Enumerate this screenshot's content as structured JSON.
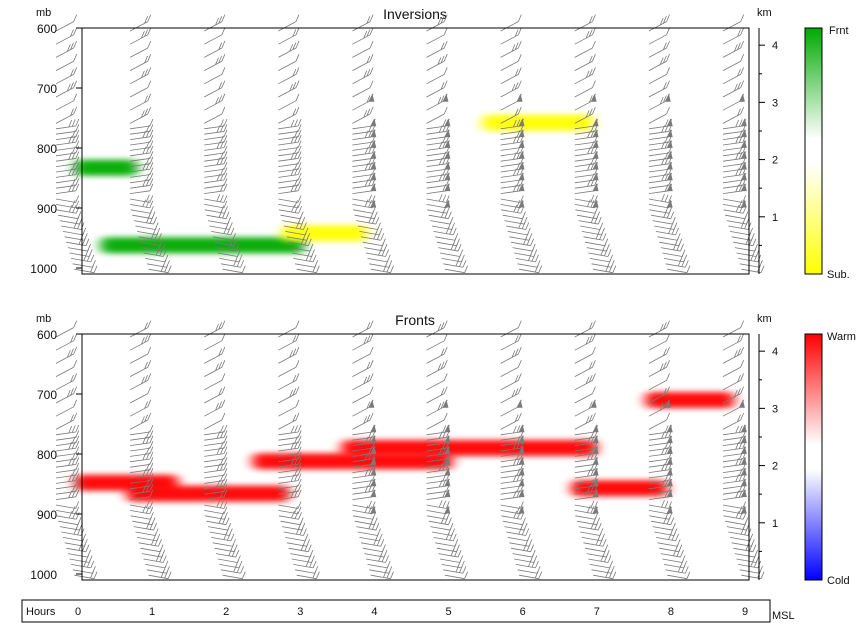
{
  "panels": [
    {
      "title": "Inversions",
      "left_unit": "mb",
      "right_unit": "km",
      "colorbar": {
        "top_label": "Frnt",
        "bottom_label": "Sub.",
        "top_color": "#00aa00",
        "bottom_color": "#ffff00"
      }
    },
    {
      "title": "Fronts",
      "left_unit": "mb",
      "right_unit": "km",
      "colorbar": {
        "top_label": "Warm",
        "bottom_label": "Cold",
        "top_color": "#ff0000",
        "bottom_color": "#0000ff"
      }
    }
  ],
  "x_axis": {
    "label": "Hours",
    "right_label": "MSL"
  },
  "chart_data": [
    {
      "type": "heatmap",
      "title": "Inversions",
      "x": [
        0,
        1,
        2,
        3,
        4,
        5,
        6,
        7,
        8,
        9
      ],
      "xlabel": "Hours",
      "xlim": [
        0,
        9
      ],
      "ylim_pressure_mb": [
        1010,
        600
      ],
      "yticks_pressure_mb": [
        "600",
        "700",
        "800",
        "900",
        "1000"
      ],
      "ylim_height_km": [
        0,
        4.3
      ],
      "yticks_height_km": [
        "1",
        "2",
        "3",
        "4"
      ],
      "colorbar_range": [
        "Sub.",
        "Frnt"
      ],
      "wind_barbs": true,
      "features": [
        {
          "kind": "Frnt",
          "x_start": -0.1,
          "x_end": 0.75,
          "pressure_mb": 833,
          "color": "#00aa00"
        },
        {
          "kind": "Frnt",
          "x_start": 0.25,
          "x_end": 3.0,
          "pressure_mb": 962,
          "color": "#00aa00"
        },
        {
          "kind": "Sub.",
          "x_start": 2.7,
          "x_end": 3.85,
          "pressure_mb": 942,
          "color": "#ffff00"
        },
        {
          "kind": "Sub.",
          "x_start": 5.4,
          "x_end": 6.9,
          "pressure_mb": 758,
          "color": "#ffff00"
        }
      ]
    },
    {
      "type": "heatmap",
      "title": "Fronts",
      "x": [
        0,
        1,
        2,
        3,
        4,
        5,
        6,
        7,
        8,
        9
      ],
      "xlabel": "Hours",
      "xlim": [
        0,
        9
      ],
      "ylim_pressure_mb": [
        1010,
        600
      ],
      "yticks_pressure_mb": [
        "600",
        "700",
        "800",
        "900",
        "1000"
      ],
      "ylim_height_km": [
        0,
        4.3
      ],
      "yticks_height_km": [
        "1",
        "2",
        "3",
        "4"
      ],
      "colorbar_range": [
        "Cold",
        "Warm"
      ],
      "wind_barbs": true,
      "features": [
        {
          "kind": "Warm",
          "x_start": -0.1,
          "x_end": 1.3,
          "pressure_mb": 848,
          "color": "#ff0000"
        },
        {
          "kind": "Warm",
          "x_start": 0.6,
          "x_end": 2.8,
          "pressure_mb": 866,
          "color": "#ff0000"
        },
        {
          "kind": "Warm",
          "x_start": 2.3,
          "x_end": 5.0,
          "pressure_mb": 812,
          "color": "#ff0000"
        },
        {
          "kind": "Warm",
          "x_start": 3.5,
          "x_end": 6.95,
          "pressure_mb": 790,
          "color": "#ff0000"
        },
        {
          "kind": "Warm",
          "x_start": 6.6,
          "x_end": 7.9,
          "pressure_mb": 857,
          "color": "#ff0000"
        },
        {
          "kind": "Warm",
          "x_start": 7.6,
          "x_end": 8.8,
          "pressure_mb": 710,
          "color": "#ff0000"
        }
      ]
    }
  ]
}
